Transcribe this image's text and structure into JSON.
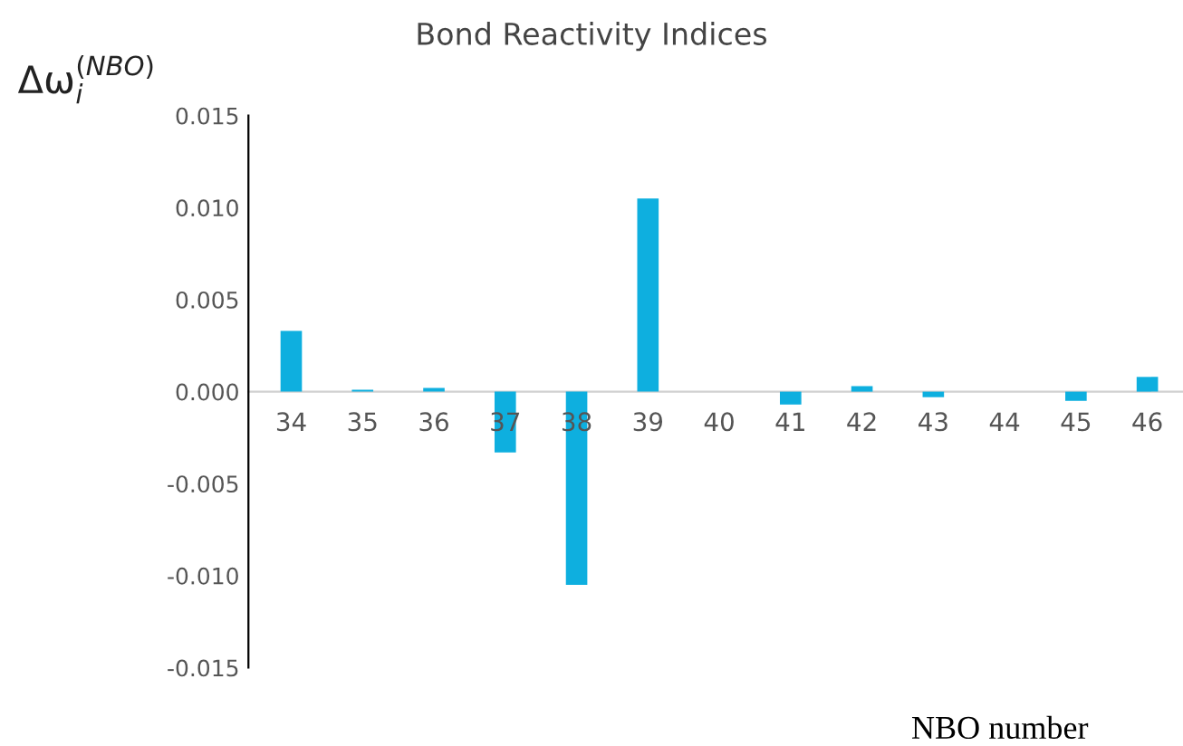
{
  "chart_data": {
    "type": "bar",
    "title": "Bond Reactivity Indices",
    "ylabel": "Δω$^{(NBO)}$$_{i}$",
    "xlabel": "NBO number",
    "categories": [
      "34",
      "35",
      "36",
      "37",
      "38",
      "39",
      "40",
      "41",
      "42",
      "43",
      "44",
      "45",
      "46"
    ],
    "values": [
      0.0033,
      0.0001,
      0.0002,
      -0.0033,
      -0.0105,
      0.0105,
      0,
      -0.0007,
      0.0003,
      -0.0003,
      0,
      -0.0005,
      0.0008
    ],
    "color": "#0eafdf",
    "ylim": [
      -0.015,
      0.015
    ],
    "yticks": [
      {
        "value": -0.015,
        "label": "-0.015"
      },
      {
        "value": -0.01,
        "label": "-0.010"
      },
      {
        "value": -0.005,
        "label": "-0.005"
      },
      {
        "value": 0,
        "label": "0.000"
      },
      {
        "value": 0.005,
        "label": "0.005"
      },
      {
        "value": 0.01,
        "label": "0.010"
      },
      {
        "value": 0.015,
        "label": "0.015"
      }
    ],
    "grid": false,
    "legend": false
  }
}
